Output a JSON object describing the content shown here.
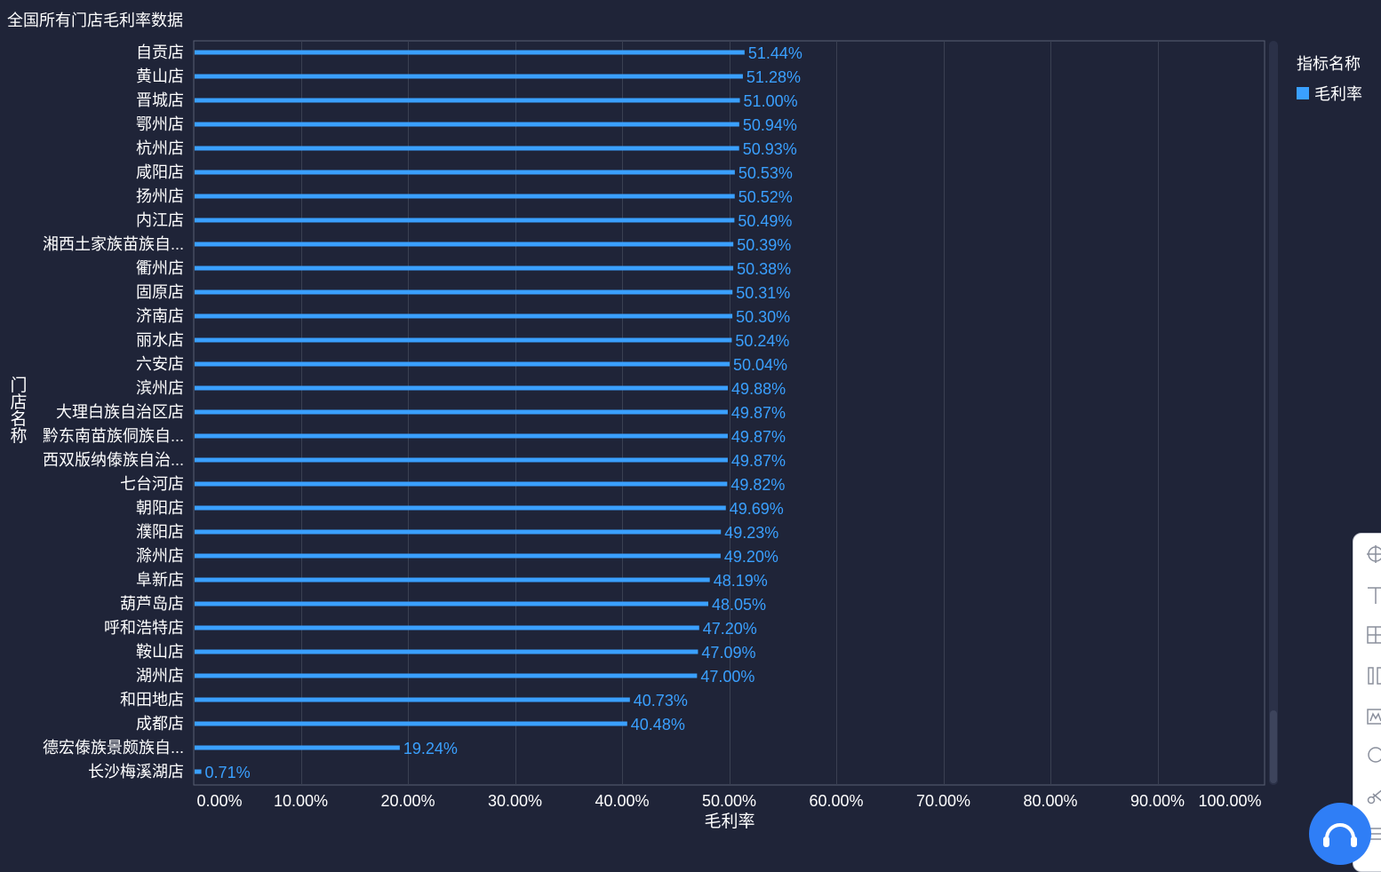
{
  "title": "全国所有门店毛利率数据",
  "legend": {
    "title": "指标名称",
    "item": "毛利率",
    "color": "#3aa0ff"
  },
  "chart_data": {
    "type": "bar",
    "orientation": "horizontal",
    "xlabel": "毛利率",
    "ylabel": "门店名称",
    "xlim": [
      0,
      100
    ],
    "x_ticks": [
      "0.00%",
      "10.00%",
      "20.00%",
      "30.00%",
      "40.00%",
      "50.00%",
      "60.00%",
      "70.00%",
      "80.00%",
      "90.00%",
      "100.00%"
    ],
    "categories": [
      "自贡店",
      "黄山店",
      "晋城店",
      "鄂州店",
      "杭州店",
      "咸阳店",
      "扬州店",
      "内江店",
      "湘西土家族苗族自...",
      "衢州店",
      "固原店",
      "济南店",
      "丽水店",
      "六安店",
      "滨州店",
      "大理白族自治区店",
      "黔东南苗族侗族自...",
      "西双版纳傣族自治...",
      "七台河店",
      "朝阳店",
      "濮阳店",
      "滁州店",
      "阜新店",
      "葫芦岛店",
      "呼和浩特店",
      "鞍山店",
      "湖州店",
      "和田地店",
      "成都店",
      "德宏傣族景颇族自...",
      "长沙梅溪湖店"
    ],
    "series": [
      {
        "name": "毛利率",
        "values": [
          51.44,
          51.28,
          51.0,
          50.94,
          50.93,
          50.53,
          50.52,
          50.49,
          50.39,
          50.38,
          50.31,
          50.3,
          50.24,
          50.04,
          49.88,
          49.87,
          49.87,
          49.87,
          49.82,
          49.69,
          49.23,
          49.2,
          48.19,
          48.05,
          47.2,
          47.09,
          47.0,
          40.73,
          40.48,
          19.24,
          0.71
        ],
        "labels": [
          "51.44%",
          "51.28%",
          "51.00%",
          "50.94%",
          "50.93%",
          "50.53%",
          "50.52%",
          "50.49%",
          "50.39%",
          "50.38%",
          "50.31%",
          "50.30%",
          "50.24%",
          "50.04%",
          "49.88%",
          "49.87%",
          "49.87%",
          "49.87%",
          "49.82%",
          "49.69%",
          "49.23%",
          "49.20%",
          "48.19%",
          "48.05%",
          "47.20%",
          "47.09%",
          "47.00%",
          "40.73%",
          "40.48%",
          "19.24%",
          "0.71%"
        ]
      }
    ],
    "grid": true,
    "legend_position": "top-right"
  }
}
